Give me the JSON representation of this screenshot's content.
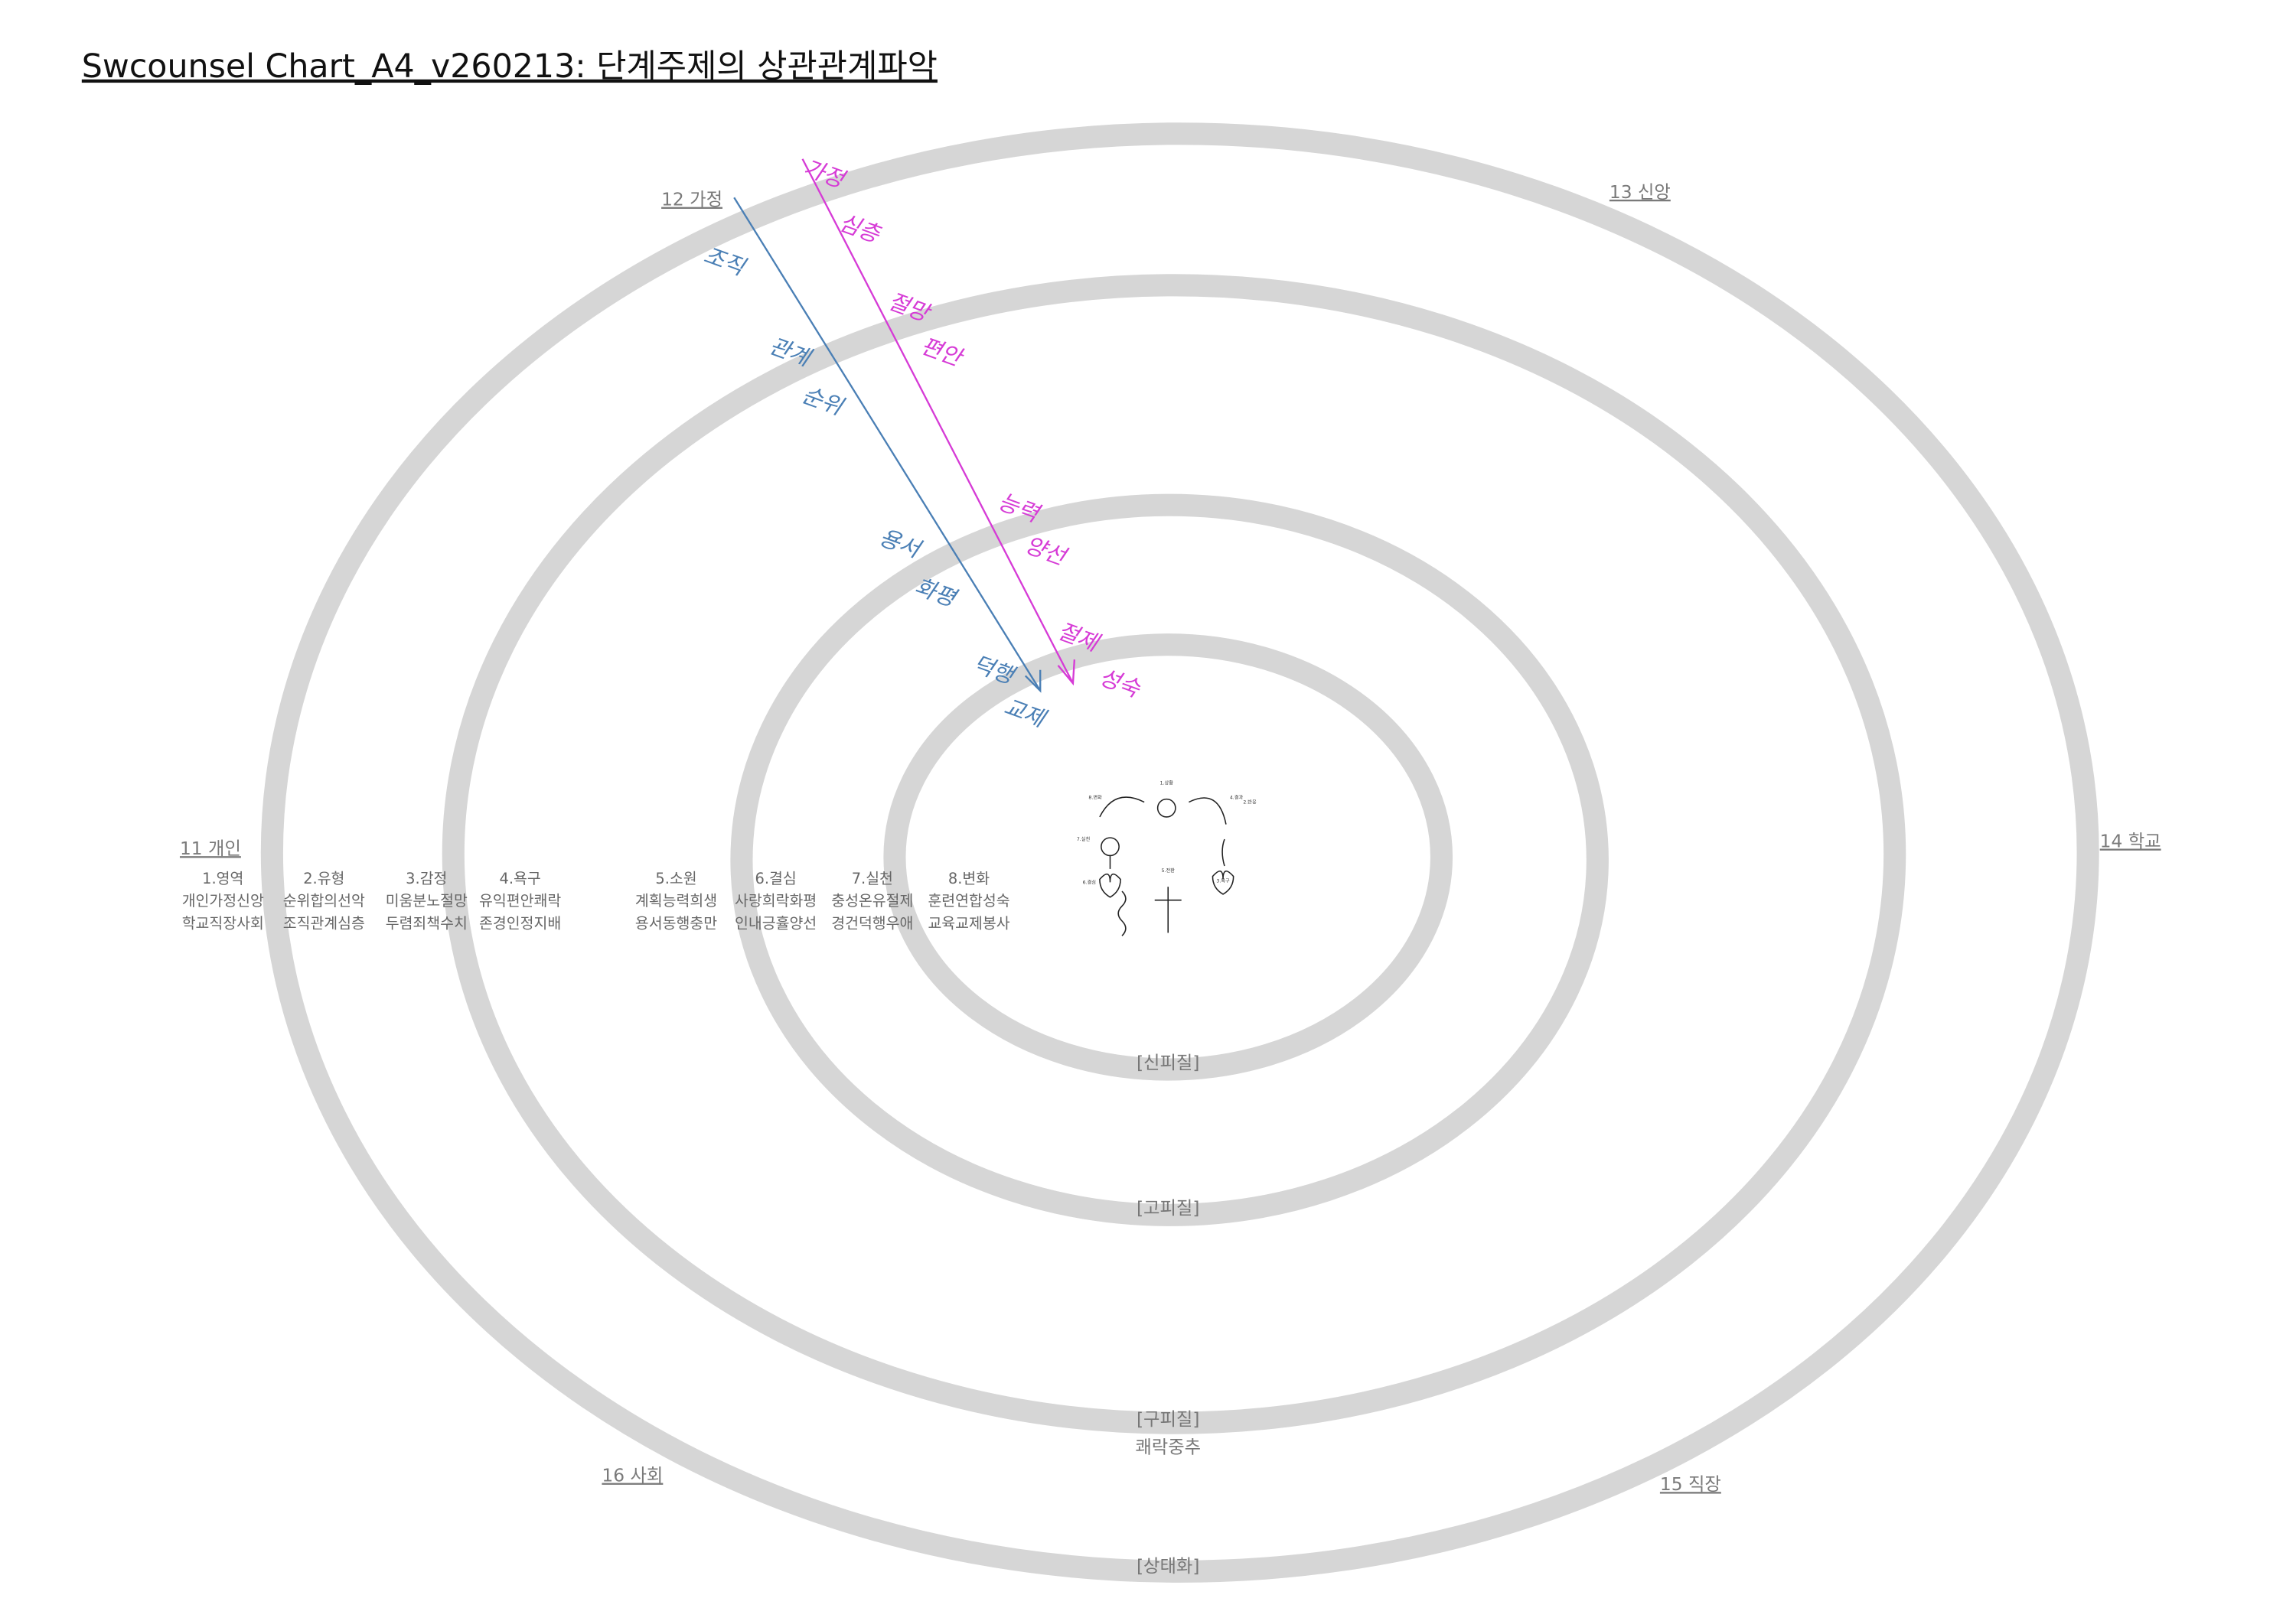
{
  "header": {
    "title": "Swcounsel Chart_A4_v260213: 단계주제의 상관관계파악"
  },
  "regions": [
    "12 가정",
    "13 신앙",
    "14 학교",
    "11 개인",
    "16 사회",
    "15 직장"
  ],
  "rings": [
    "[신피질]",
    "[고피질]",
    "[구피질]",
    "쾌락중추",
    "[상태화]"
  ],
  "table": [
    {
      "heading": "1.영역",
      "rows": [
        "개인가정신앙",
        "학교직장사회"
      ]
    },
    {
      "heading": "2.유형",
      "rows": [
        "순위합의선악",
        "조직관계심층"
      ]
    },
    {
      "heading": "3.감정",
      "rows": [
        "미움분노절망",
        "두렴죄책수치"
      ]
    },
    {
      "heading": "4.욕구",
      "rows": [
        "유익편안쾌락",
        "존경인정지배"
      ]
    },
    {
      "heading": "5.소원",
      "rows": [
        "계획능력희생",
        "용서동행충만"
      ]
    },
    {
      "heading": "6.결심",
      "rows": [
        "사랑희락화평",
        "인내긍휼양선"
      ]
    },
    {
      "heading": "7.실천",
      "rows": [
        "충성온유절제",
        "경건덕행우애"
      ]
    },
    {
      "heading": "8.변화",
      "rows": [
        "훈련연합성숙",
        "교육교제봉사"
      ]
    }
  ],
  "annotations": {
    "blue": [
      "조직",
      "관계",
      "순위",
      "용서",
      "화평",
      "덕행",
      "교제"
    ],
    "magenta": [
      "가정",
      "심층",
      "절망",
      "편안",
      "능력",
      "양선",
      "절제",
      "성숙"
    ]
  },
  "diagram": [
    "1.상황",
    "2.반응",
    "3.욕구",
    "4.결과",
    "5.전환",
    "6.결심",
    "7.실천",
    "8.변화"
  ]
}
